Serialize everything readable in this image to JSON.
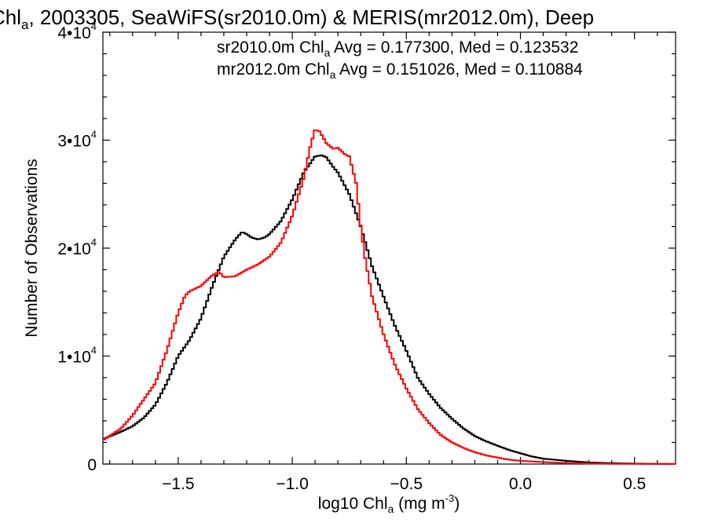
{
  "chart_data": {
    "type": "line",
    "title": {
      "prefix": "Chl",
      "sub": "a",
      "suffix": ", 2003305, SeaWiFS(sr2010.0m) & MERIS(mr2012.0m), Deep"
    },
    "xlabel": {
      "prefix": "log10 Chl",
      "sub": "a",
      "middle": " (mg m",
      "sup": "-3",
      "suffix": ")"
    },
    "ylabel": "Number of Observations",
    "xlim": [
      -1.83,
      0.68
    ],
    "ylim": [
      0,
      40000
    ],
    "x_ticks": [
      {
        "value": -1.5,
        "label": "−1.5"
      },
      {
        "value": -1.0,
        "label": "−1.0"
      },
      {
        "value": -0.5,
        "label": "−0.5"
      },
      {
        "value": 0.0,
        "label": "0.0"
      },
      {
        "value": 0.5,
        "label": "0.5"
      }
    ],
    "y_ticks": [
      {
        "value": 0,
        "label": "0",
        "exp": ""
      },
      {
        "value": 10000,
        "label": "1•10",
        "exp": "4"
      },
      {
        "value": 20000,
        "label": "2•10",
        "exp": "4"
      },
      {
        "value": 30000,
        "label": "3•10",
        "exp": "4"
      },
      {
        "value": 40000,
        "label": "4•10",
        "exp": "4"
      }
    ],
    "grid": false,
    "legend_position": "top-right",
    "series": [
      {
        "name": "sr2010.0m",
        "color": "#000000",
        "annotation": {
          "prefix": "sr2010.0m Chl",
          "sub": "a",
          "suffix": " Avg = 0.177300, Med = 0.123532"
        },
        "x": [
          -1.83,
          -1.75,
          -1.7,
          -1.65,
          -1.6,
          -1.55,
          -1.5,
          -1.45,
          -1.4,
          -1.35,
          -1.3,
          -1.25,
          -1.22,
          -1.2,
          -1.18,
          -1.15,
          -1.12,
          -1.1,
          -1.05,
          -1.0,
          -0.95,
          -0.9,
          -0.87,
          -0.85,
          -0.82,
          -0.8,
          -0.75,
          -0.7,
          -0.65,
          -0.6,
          -0.55,
          -0.5,
          -0.45,
          -0.4,
          -0.35,
          -0.3,
          -0.25,
          -0.2,
          -0.15,
          -0.1,
          -0.05,
          0.0,
          0.05,
          0.1,
          0.2,
          0.3,
          0.4,
          0.5,
          0.6,
          0.68
        ],
        "y": [
          2300,
          3000,
          3500,
          4300,
          5500,
          7500,
          10000,
          11500,
          13500,
          16500,
          19200,
          20800,
          21500,
          21300,
          21000,
          20800,
          21000,
          21300,
          22500,
          24500,
          27000,
          28500,
          28600,
          28400,
          27500,
          27000,
          25000,
          22000,
          18300,
          15500,
          12800,
          10500,
          8000,
          6500,
          5200,
          4200,
          3300,
          2600,
          2100,
          1700,
          1300,
          1000,
          700,
          500,
          300,
          150,
          80,
          40,
          20,
          10
        ]
      },
      {
        "name": "mr2012.0m",
        "color": "#ff0000",
        "annotation": {
          "prefix": "mr2012.0m Chl",
          "sub": "a",
          "suffix": " Avg = 0.151026, Med = 0.110884"
        },
        "x": [
          -1.83,
          -1.75,
          -1.7,
          -1.65,
          -1.6,
          -1.55,
          -1.5,
          -1.47,
          -1.45,
          -1.4,
          -1.35,
          -1.32,
          -1.3,
          -1.25,
          -1.2,
          -1.15,
          -1.1,
          -1.05,
          -1.0,
          -0.95,
          -0.92,
          -0.9,
          -0.88,
          -0.85,
          -0.82,
          -0.8,
          -0.77,
          -0.75,
          -0.72,
          -0.7,
          -0.68,
          -0.65,
          -0.6,
          -0.55,
          -0.5,
          -0.45,
          -0.4,
          -0.35,
          -0.3,
          -0.25,
          -0.2,
          -0.15,
          -0.1,
          -0.05,
          0.0,
          0.1,
          0.2,
          0.3,
          0.4,
          0.68
        ],
        "y": [
          2200,
          3300,
          4500,
          6000,
          7500,
          10500,
          14000,
          15600,
          16000,
          16500,
          17500,
          17800,
          17300,
          17400,
          18000,
          18500,
          19200,
          20500,
          23000,
          26500,
          29500,
          31000,
          30800,
          29700,
          29200,
          29300,
          28700,
          28500,
          26000,
          22000,
          19000,
          15500,
          12000,
          9200,
          7000,
          5100,
          3800,
          2700,
          2000,
          1500,
          1100,
          800,
          600,
          400,
          300,
          180,
          100,
          50,
          20,
          5
        ]
      }
    ]
  }
}
